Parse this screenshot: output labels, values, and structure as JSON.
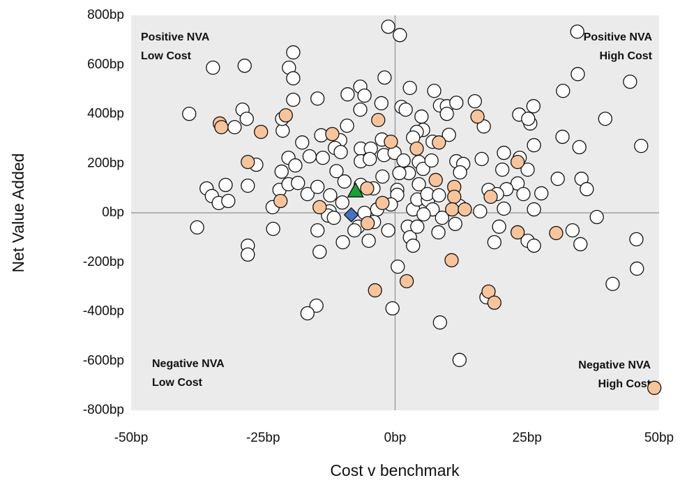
{
  "chart_data": {
    "type": "scatter",
    "xlabel": "Cost v benchmark",
    "ylabel": "Net Value Added",
    "xlim": [
      -50,
      50
    ],
    "ylim": [
      -800,
      800
    ],
    "xticks": [
      {
        "value": -50,
        "label": "-50bp"
      },
      {
        "value": -25,
        "label": "-25bp"
      },
      {
        "value": 0,
        "label": "0bp"
      },
      {
        "value": 25,
        "label": "25bp"
      },
      {
        "value": 50,
        "label": "50bp"
      }
    ],
    "yticks": [
      {
        "value": -800,
        "label": "-800bp"
      },
      {
        "value": -600,
        "label": "-600bp"
      },
      {
        "value": -400,
        "label": "-400bp"
      },
      {
        "value": -200,
        "label": "-200bp"
      },
      {
        "value": 0,
        "label": "0bp"
      },
      {
        "value": 200,
        "label": "200bp"
      },
      {
        "value": 400,
        "label": "400bp"
      },
      {
        "value": 600,
        "label": "600bp"
      },
      {
        "value": 800,
        "label": "800bp"
      }
    ],
    "grid": false,
    "annotations": [
      {
        "text": [
          "Positive NVA",
          "Low Cost"
        ],
        "corner": "top-left"
      },
      {
        "text": [
          "Positive NVA",
          "High Cost"
        ],
        "corner": "top-right"
      },
      {
        "text": [
          "Negative NVA",
          "Low Cost"
        ],
        "corner": "bottom-left"
      },
      {
        "text": [
          "Negative NVA",
          "High Cost"
        ],
        "corner": "bottom-right"
      }
    ],
    "series": [
      {
        "color": "#ffffff",
        "marker": "circle",
        "x": [
          -1.3,
          0.9,
          34.5,
          -19.3,
          -34.5,
          -28.5,
          -20.1,
          -19.3,
          -2.0,
          34.6,
          44.5,
          31.8,
          -39.0,
          -28.9,
          -28.1,
          -30.4,
          -19.3,
          -14.7,
          -21.3,
          -21.4,
          -6.6,
          -5.8,
          -9.0,
          -2.6,
          -6.6,
          2.8,
          7.4,
          1.2,
          2.0,
          8.5,
          9.8,
          11.6,
          9.8,
          5.0,
          15.1,
          16.8,
          23.5,
          26.2,
          25.6,
          25.2,
          39.8,
          31.7,
          34.9,
          46.6,
          26.3,
          5.3,
          4.1,
          10.2,
          7.1,
          3.4,
          -9.1,
          -10.4,
          -14.0,
          -17.6,
          -20.2,
          -18.9,
          -21.5,
          -16.2,
          -13.7,
          -26.3,
          -11.4,
          -10.3,
          -6.5,
          -4.6,
          -6.5,
          -4.8,
          -2.5,
          -2.1,
          -0.1,
          1.6,
          2.6,
          0.8,
          4.5,
          5.3,
          6.9,
          11.6,
          12.9,
          12.3,
          16.4,
          20.6,
          20.3,
          23.6,
          25.1,
          23.2,
          21.1,
          24.3,
          27.7,
          30.8,
          35.3,
          36.3,
          26.3,
          38.2,
          -35.7,
          -34.7,
          -32.1,
          -33.4,
          -31.6,
          -27.9,
          -23.2,
          -21.9,
          -20.2,
          -18.4,
          -16.6,
          -14.7,
          -11.1,
          -12.3,
          -9.6,
          -10.0,
          -12.4,
          -12.7,
          -11.6,
          -6.5,
          -4.1,
          -2.4,
          0.4,
          0.4,
          -0.8,
          -3.4,
          -5.8,
          -4.0,
          -7.0,
          -5.0,
          -1.3,
          -7.7,
          -9.9,
          2.4,
          2.8,
          3.4,
          3.4,
          4.2,
          6.2,
          4.5,
          6.1,
          8.3,
          7.1,
          8.9,
          8.2,
          4.2,
          5.4,
          12.2,
          11.4,
          16.1,
          17.7,
          19.3,
          20.6,
          18.8,
          19.7,
          25.1,
          26.3,
          33.6,
          35.1,
          45.7,
          45.8,
          41.2,
          -37.5,
          -23.1,
          -27.9,
          -27.9,
          -14.7,
          -14.3,
          -14.9,
          -16.6,
          0.5,
          -0.5,
          8.5,
          12.2,
          17.3
        ],
        "y": [
          754,
          720,
          734,
          650,
          588,
          596,
          588,
          545,
          548,
          562,
          531,
          494,
          401,
          418,
          381,
          347,
          458,
          463,
          333,
          381,
          511,
          475,
          480,
          444,
          418,
          506,
          494,
          429,
          418,
          435,
          432,
          446,
          401,
          390,
          452,
          350,
          398,
          432,
          362,
          381,
          381,
          308,
          266,
          271,
          274,
          336,
          328,
          316,
          288,
          305,
          353,
          294,
          314,
          285,
          223,
          192,
          167,
          229,
          223,
          195,
          263,
          246,
          260,
          260,
          209,
          218,
          297,
          234,
          243,
          212,
          161,
          161,
          206,
          178,
          212,
          209,
          198,
          164,
          218,
          243,
          175,
          223,
          175,
          119,
          96,
          76,
          79,
          138,
          138,
          96,
          14,
          -17,
          99,
          68,
          113,
          40,
          48,
          110,
          23,
          93,
          116,
          121,
          76,
          105,
          169,
          71,
          127,
          42,
          6,
          -11,
          -20,
          113,
          99,
          147,
          93,
          73,
          34,
          14,
          0,
          -37,
          -56,
          -113,
          -71,
          -71,
          -119,
          -56,
          -99,
          -133,
          14,
          54,
          51,
          116,
          76,
          71,
          14,
          -20,
          -79,
          -56,
          -6,
          28,
          -45,
          6,
          93,
          76,
          17,
          -119,
          -56,
          -113,
          -133,
          -71,
          -127,
          -107,
          -226,
          -288,
          -59,
          -65,
          -133,
          -169,
          -71,
          -158,
          -376,
          -407,
          -218,
          -387,
          -444,
          -596,
          -342
        ]
      },
      {
        "color": "#f8c49c",
        "marker": "circle",
        "x": [
          -33.2,
          -32.9,
          -25.4,
          -27.9,
          -20.7,
          -21.7,
          -11.9,
          -14.3,
          -3.2,
          -0.8,
          4.1,
          -5.3,
          -5.2,
          -2.4,
          -3.8,
          2.2,
          8.3,
          7.7,
          15.6,
          11.2,
          11.2,
          10.8,
          13.2,
          10.7,
          18.1,
          17.7,
          18.8,
          23.2,
          23.2,
          30.5,
          49.1
        ],
        "y": [
          362,
          347,
          328,
          206,
          395,
          48,
          319,
          23,
          376,
          288,
          260,
          99,
          -42,
          40,
          -314,
          -277,
          285,
          133,
          390,
          105,
          65,
          14,
          14,
          -192,
          65,
          -319,
          -364,
          206,
          -79,
          -82,
          -709
        ]
      },
      {
        "color": "#1a9f3b",
        "marker": "triangle",
        "x": [
          -7.5
        ],
        "y": [
          90
        ]
      },
      {
        "color": "#4472c4",
        "marker": "diamond",
        "x": [
          -8.3
        ],
        "y": [
          -8
        ]
      }
    ]
  }
}
